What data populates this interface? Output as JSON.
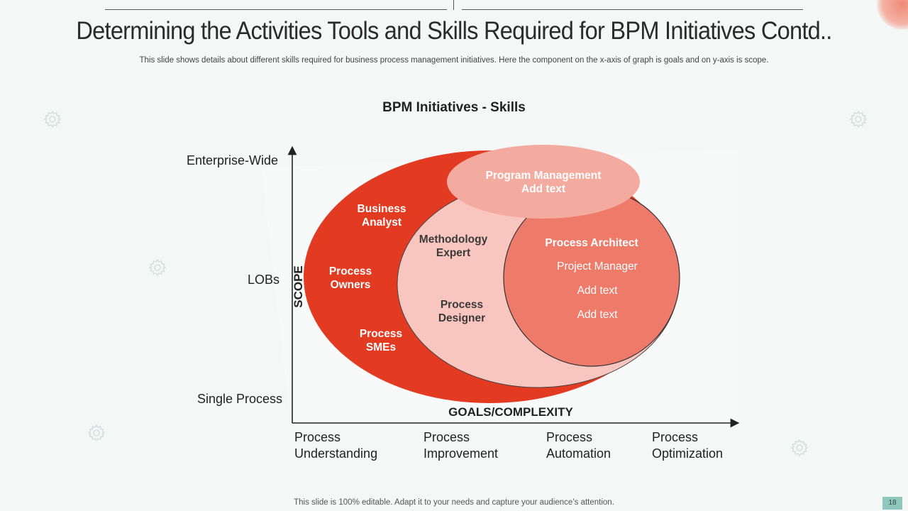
{
  "slide": {
    "title": "Determining the Activities Tools and Skills Required for BPM Initiatives Contd..",
    "subtitle": "This slide shows details about different skills required for business process management initiatives. Here the component on the x-axis  of graph is goals and on y-axis  is scope.",
    "footer": "This slide is 100% editable. Adapt it to your needs and capture your audience’s attention.",
    "page_number": "18"
  },
  "chart": {
    "title": "BPM Initiatives  - Skills",
    "y_axis_title": "SCOPE",
    "x_axis_title": "GOALS/COMPLEXITY",
    "y_levels": [
      "Enterprise-Wide",
      "LOBs",
      "Single Process"
    ],
    "x_levels": [
      {
        "line1": "Process",
        "line2": "Understanding"
      },
      {
        "line1": "Process",
        "line2": "Improvement"
      },
      {
        "line1": "Process",
        "line2": "Automation"
      },
      {
        "line1": "Process",
        "line2": "Optimization"
      }
    ]
  },
  "regions": {
    "outer": {
      "color": "#e33a22",
      "labels": [
        {
          "line1": "Business",
          "line2": "Analyst"
        },
        {
          "line1": "Process",
          "line2": "Owners"
        },
        {
          "line1": "Process",
          "line2": "SMEs"
        }
      ]
    },
    "middle": {
      "color": "#f8c6bf",
      "labels": [
        {
          "line1": "Methodology",
          "line2": "Expert"
        },
        {
          "line1": "Process",
          "line2": "Designer"
        }
      ]
    },
    "inner": {
      "color": "#ee7b6a",
      "title": "Process Architect",
      "items": [
        "Project Manager",
        "Add text",
        "Add text"
      ]
    },
    "top": {
      "color": "#f4ab9f",
      "line1": "Program Management",
      "line2": "Add text"
    }
  },
  "icons": [
    "gear-icon",
    "gear-icon",
    "gear-icon",
    "gear-icon",
    "gear-icon",
    "gear-icon"
  ]
}
